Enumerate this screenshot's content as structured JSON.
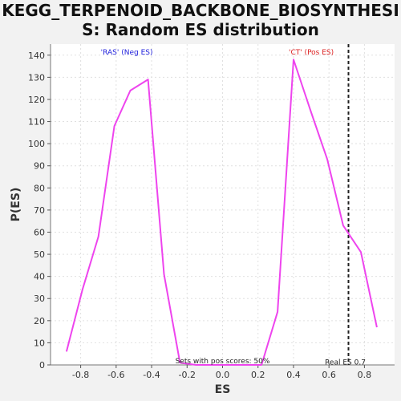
{
  "chart_data": {
    "type": "line",
    "title_lines": [
      "KEGG_TERPENOID_BACKBONE_BIOSYNTHESI",
      "S: Random ES distribution"
    ],
    "xlabel": "ES",
    "ylabel": "P(ES)",
    "xlim": [
      -0.97,
      0.97
    ],
    "ylim": [
      0,
      145
    ],
    "x_ticks": [
      "-0.8",
      "-0.6",
      "-0.4",
      "-0.2",
      "0.0",
      "0.2",
      "0.4",
      "0.6",
      "0.8"
    ],
    "x_tick_values": [
      -0.8,
      -0.6,
      -0.4,
      -0.2,
      0.0,
      0.2,
      0.4,
      0.6,
      0.8
    ],
    "y_ticks": [
      "0",
      "10",
      "20",
      "30",
      "40",
      "50",
      "60",
      "70",
      "80",
      "90",
      "100",
      "110",
      "120",
      "130",
      "140"
    ],
    "y_tick_values": [
      0,
      10,
      20,
      30,
      40,
      50,
      60,
      70,
      80,
      90,
      100,
      110,
      120,
      130,
      140
    ],
    "grid": true,
    "series": [
      {
        "color": "#ee44ee",
        "x": [
          -0.88,
          -0.79,
          -0.7,
          -0.61,
          -0.52,
          -0.42,
          -0.33,
          -0.24,
          -0.15,
          -0.06,
          0.04,
          0.13,
          0.22,
          0.31,
          0.4,
          0.5,
          0.59,
          0.68,
          0.78,
          0.87
        ],
        "y": [
          6,
          34,
          58,
          108,
          124,
          129,
          41,
          1,
          0,
          0,
          0,
          0,
          0,
          24,
          138,
          114,
          93,
          63,
          51,
          17
        ]
      }
    ],
    "real_es": 0.71,
    "annotations": {
      "neg_label": "'RAS' (Neg ES)",
      "pos_label": "'CT' (Pos ES)",
      "pos_scores": "Sets with pos scores: 50%",
      "real_es_label": "Real ES 0.7"
    },
    "colors": {
      "line": "#ee44ee",
      "neg_label": "#2222dd",
      "pos_label": "#dd2222",
      "grid": "#e0e0e0",
      "plot_bg": "#ffffff"
    }
  }
}
